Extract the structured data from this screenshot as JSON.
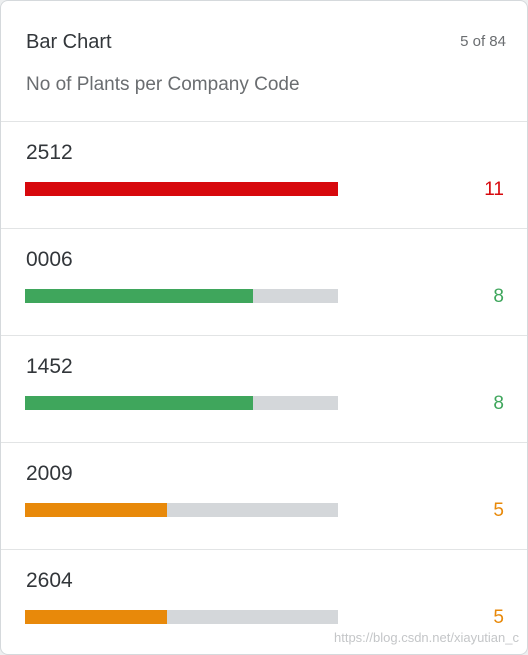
{
  "card": {
    "title": "Bar Chart",
    "counter": "5 of 84",
    "subtitle": "No of Plants per Company Code"
  },
  "colors": {
    "negative": "#d7080d",
    "positive": "#3fa65c",
    "critical": "#e8890a",
    "track": "#d4d7da"
  },
  "chart_data": {
    "type": "bar",
    "title": "Bar Chart",
    "subtitle": "No of Plants per Company Code",
    "categories": [
      "2512",
      "0006",
      "1452",
      "2009",
      "2604"
    ],
    "values": [
      11,
      8,
      8,
      5,
      5
    ],
    "max": 11,
    "value_states": [
      "negative",
      "positive",
      "positive",
      "critical",
      "critical"
    ]
  },
  "rows": [
    {
      "label": "2512",
      "value": "11",
      "num": 11,
      "color": "#d7080d"
    },
    {
      "label": "0006",
      "value": "8",
      "num": 8,
      "color": "#3fa65c"
    },
    {
      "label": "1452",
      "value": "8",
      "num": 8,
      "color": "#3fa65c"
    },
    {
      "label": "2009",
      "value": "5",
      "num": 5,
      "color": "#e8890a"
    },
    {
      "label": "2604",
      "value": "5",
      "num": 5,
      "color": "#e8890a"
    }
  ],
  "watermark": "https://blog.csdn.net/xiayutian_c"
}
